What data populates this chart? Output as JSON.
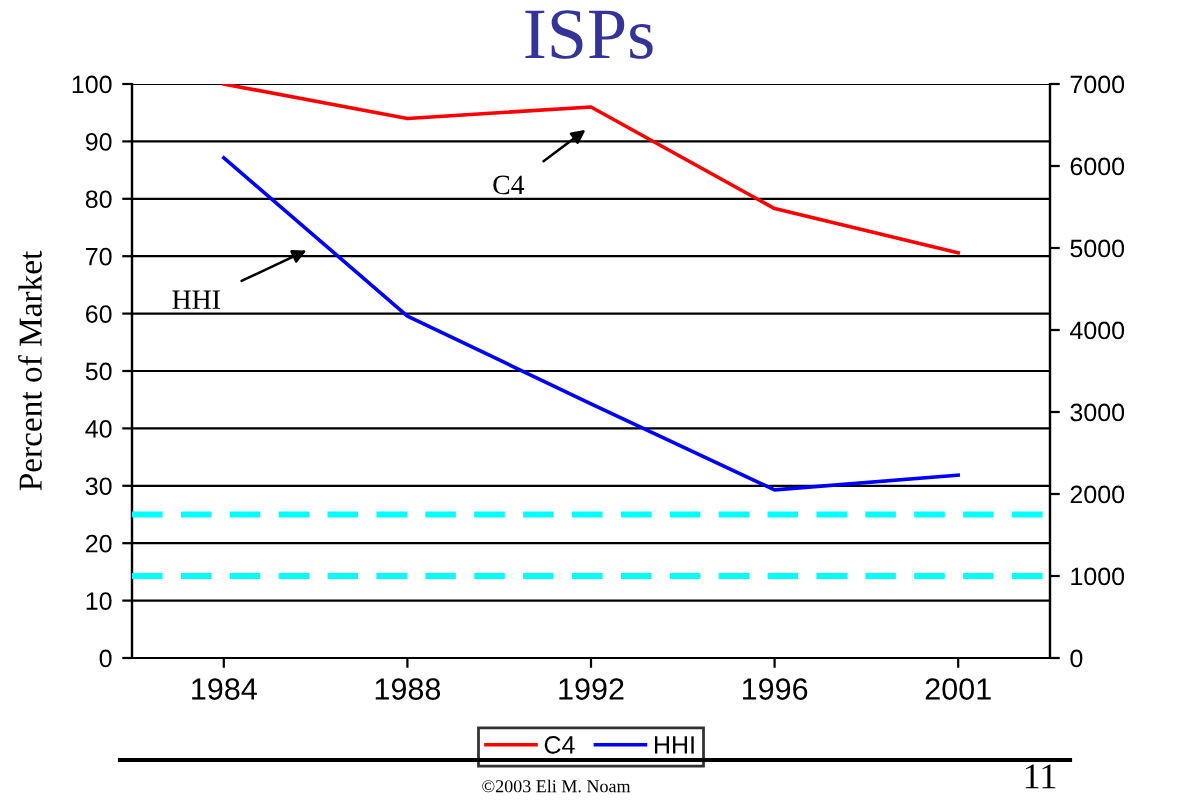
{
  "chart_data": {
    "type": "line",
    "title": "ISPs",
    "ylabel": "Percent of Market",
    "categories": [
      "1984",
      "1988",
      "1992",
      "1996",
      "2001"
    ],
    "series": [
      {
        "name": "C4",
        "color": "#ff0000",
        "values": [
          100,
          94,
          96,
          78.3,
          70.6
        ]
      },
      {
        "name": "HHI",
        "color": "#0000ff",
        "axis": "y2",
        "values": [
          6100,
          4170,
          3100,
          2050,
          2230
        ]
      }
    ],
    "ylim": [
      0,
      100
    ],
    "yticks": [
      0,
      10,
      20,
      30,
      40,
      50,
      60,
      70,
      80,
      90,
      100
    ],
    "y2lim": [
      0,
      7000
    ],
    "y2ticks": [
      0,
      1000,
      2000,
      3000,
      4000,
      5000,
      6000,
      7000
    ],
    "ref_lines": [
      {
        "axis": "y2",
        "value": 1750,
        "color": "#00ffff",
        "line_style": "dashed"
      },
      {
        "axis": "y2",
        "value": 1000,
        "color": "#00ffff",
        "line_style": "dashed"
      }
    ],
    "annotations": [
      "C4",
      "HHI",
      "©2003 Eli M. Noam",
      "11"
    ],
    "grid": "y",
    "legend": "bottom",
    "marker": "none",
    "line_style": "solid"
  }
}
